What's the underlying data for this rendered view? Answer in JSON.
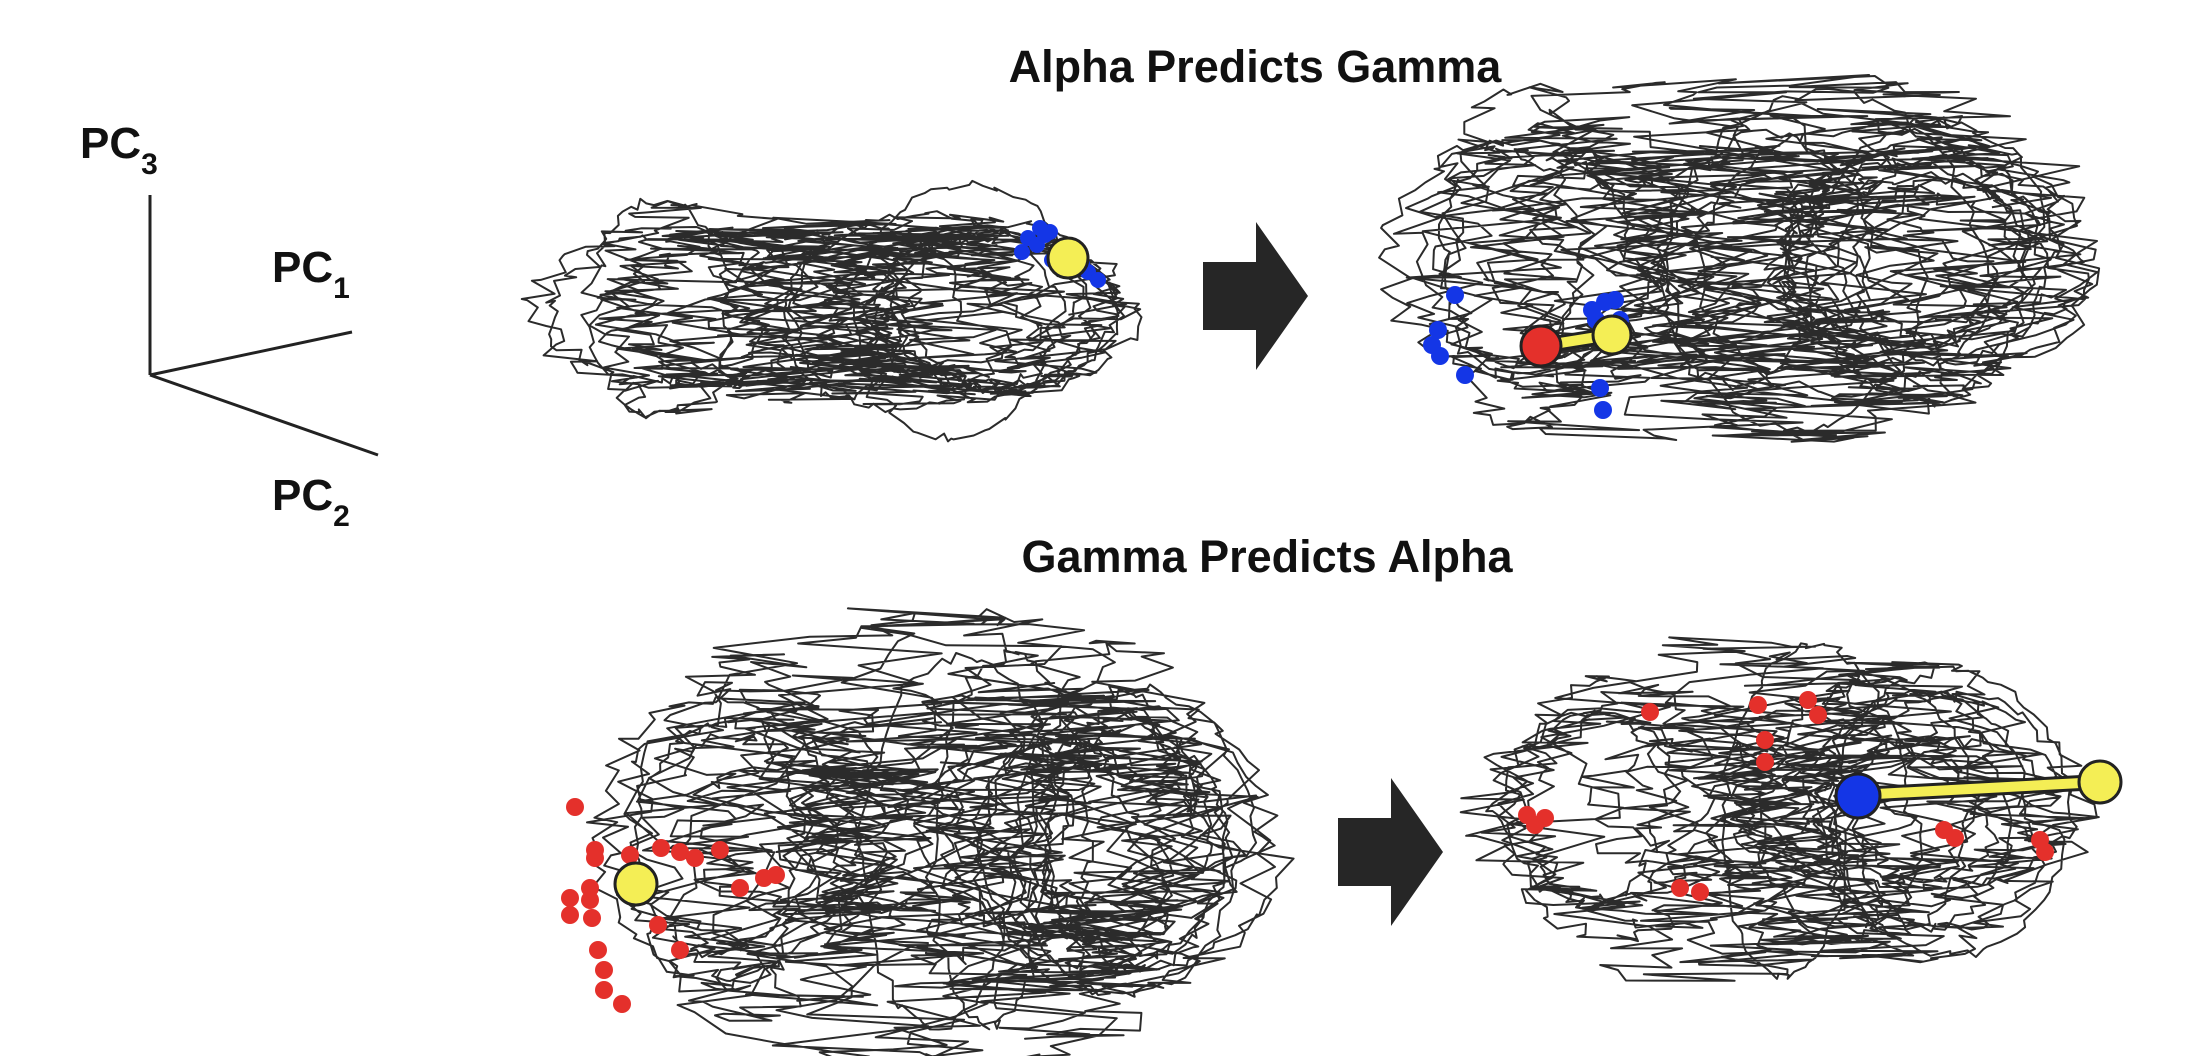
{
  "axes_legend": {
    "pc3": {
      "base": "PC",
      "sub": "3"
    },
    "pc1": {
      "base": "PC",
      "sub": "1"
    },
    "pc2": {
      "base": "PC",
      "sub": "2"
    }
  },
  "panels": {
    "top": {
      "title": "Alpha Predicts Gamma"
    },
    "bottom": {
      "title": "Gamma Predicts Alpha"
    }
  },
  "colors": {
    "trajectory": "#2b2b2b",
    "blue_marker": "#1436e6",
    "red_marker": "#e4302b",
    "yellow_point": "#f4ee55",
    "arrow": "#262626"
  }
}
